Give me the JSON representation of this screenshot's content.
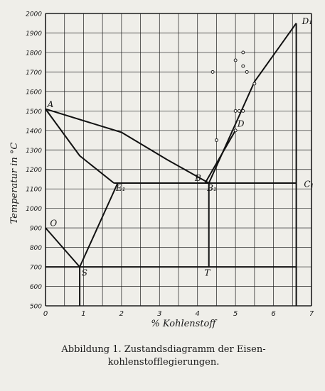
{
  "chart_data": {
    "type": "line",
    "title": "",
    "xlabel": "% Kohlenstoff",
    "ylabel": "Temperatur in °C",
    "xlim": [
      0,
      7
    ],
    "ylim": [
      500,
      2000
    ],
    "x_ticks": [
      "0",
      "1",
      "2",
      "3",
      "4",
      "5",
      "6",
      "7"
    ],
    "y_ticks": [
      "500",
      "600",
      "700",
      "800",
      "900",
      "1000",
      "1100",
      "1200",
      "1300",
      "1400",
      "1500",
      "1600",
      "1700",
      "1800",
      "1900",
      "2000"
    ],
    "grid": true,
    "series": [
      {
        "points": [
          [
            0,
            1510
          ],
          [
            2.0,
            1390
          ],
          [
            3.2,
            1250
          ],
          [
            4.3,
            1130
          ]
        ]
      },
      {
        "points": [
          [
            0,
            1510
          ],
          [
            0.9,
            1270
          ],
          [
            1.8,
            1130
          ]
        ]
      },
      {
        "points": [
          [
            4.3,
            1130
          ],
          [
            5.5,
            1650
          ],
          [
            6.6,
            1950
          ]
        ]
      },
      {
        "points": [
          [
            4.2,
            1130
          ],
          [
            5.0,
            1400
          ]
        ]
      },
      {
        "points": [
          [
            0,
            900
          ],
          [
            0.9,
            700
          ]
        ]
      },
      {
        "points": [
          [
            0.9,
            700
          ],
          [
            1.9,
            1130
          ]
        ]
      },
      {
        "points": [
          [
            1.8,
            1130
          ],
          [
            6.6,
            1130
          ]
        ]
      },
      {
        "points": [
          [
            0,
            700
          ],
          [
            6.6,
            700
          ]
        ]
      },
      {
        "points": [
          [
            4.3,
            700
          ],
          [
            4.3,
            1130
          ]
        ]
      },
      {
        "points": [
          [
            0.9,
            500
          ],
          [
            0.9,
            700
          ]
        ]
      },
      {
        "points": [
          [
            6.6,
            500
          ],
          [
            6.6,
            1950
          ]
        ]
      }
    ],
    "scatter": [
      [
        4.4,
        1700
      ],
      [
        5.0,
        1760
      ],
      [
        5.2,
        1800
      ],
      [
        5.2,
        1730
      ],
      [
        5.3,
        1700
      ],
      [
        5.5,
        1640
      ],
      [
        5.0,
        1500
      ],
      [
        5.1,
        1500
      ],
      [
        5.2,
        1500
      ],
      [
        5.0,
        1400
      ],
      [
        4.5,
        1350
      ]
    ],
    "annotations": [
      {
        "text": "A",
        "x": 0.05,
        "y": 1520
      },
      {
        "text": "D₁",
        "x": 6.75,
        "y": 1945
      },
      {
        "text": "D",
        "x": 5.05,
        "y": 1420
      },
      {
        "text": "B",
        "x": 3.93,
        "y": 1140
      },
      {
        "text": "B₁",
        "x": 4.25,
        "y": 1090
      },
      {
        "text": "E₁",
        "x": 1.85,
        "y": 1090
      },
      {
        "text": "C₁",
        "x": 6.8,
        "y": 1110
      },
      {
        "text": "O",
        "x": 0.12,
        "y": 910
      },
      {
        "text": "S",
        "x": 0.95,
        "y": 655
      },
      {
        "text": "T",
        "x": 4.18,
        "y": 655
      }
    ]
  },
  "caption": {
    "line1": "Abbildung 1.  Zustandsdiagramm der Eisen-",
    "line2": "kohlenstofflegierungen."
  }
}
